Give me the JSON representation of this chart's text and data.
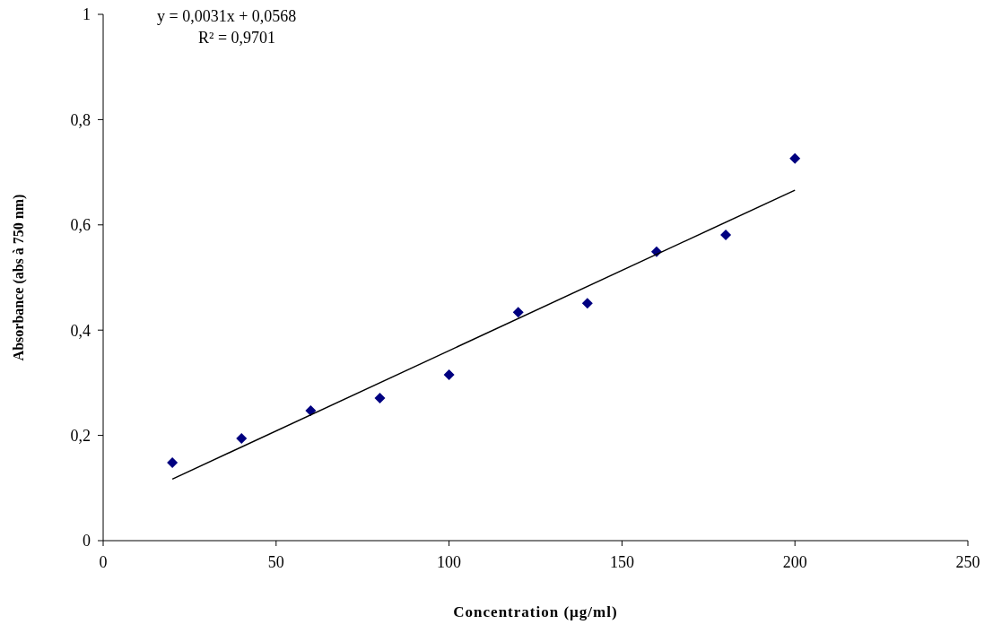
{
  "chart_data": {
    "type": "scatter",
    "xlabel": "Concentration (µg/ml)",
    "ylabel": "Absorbance (abs à 750 nm)",
    "x": [
      20,
      40,
      60,
      80,
      100,
      120,
      140,
      160,
      180,
      200
    ],
    "series": [
      {
        "color": "#000080",
        "marker": "diamond",
        "values": [
          0.148,
          0.194,
          0.247,
          0.271,
          0.315,
          0.434,
          0.451,
          0.549,
          0.581,
          0.726
        ]
      },
      {
        "type": "line",
        "color": "#000000",
        "marker": "none",
        "line_style": "solid",
        "x": [
          20,
          200
        ],
        "values": [
          0.117,
          0.666
        ]
      }
    ],
    "annotations": [
      "y = 0,0031x + 0,0568",
      "R² = 0,9701"
    ],
    "xlim": [
      0,
      250
    ],
    "xticks": [
      0,
      50,
      100,
      150,
      200,
      250
    ],
    "ylim": [
      0,
      1
    ],
    "yticks": [
      0,
      {
        "value": 0.2,
        "label": "0,2"
      },
      {
        "value": 0.4,
        "label": "0,4"
      },
      {
        "value": 0.6,
        "label": "0,6"
      },
      {
        "value": 0.8,
        "label": "0,8"
      },
      1
    ],
    "grid": false
  }
}
